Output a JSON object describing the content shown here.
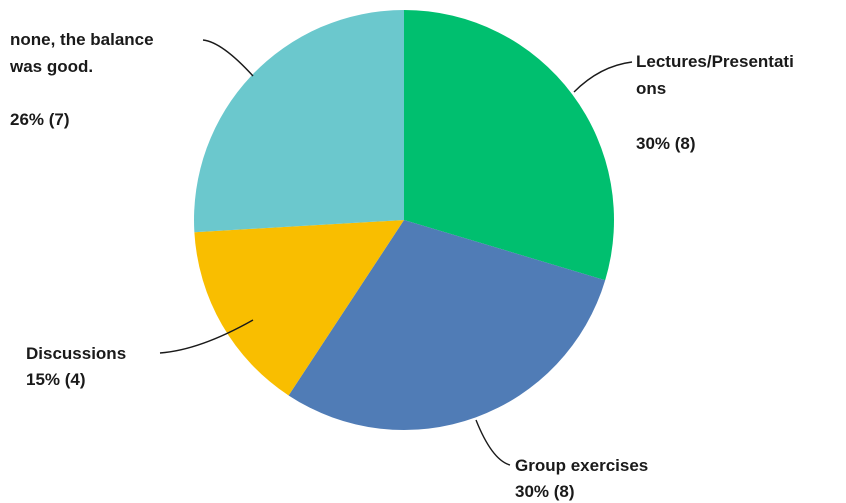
{
  "chart_data": {
    "type": "pie",
    "title": "",
    "start_angle_deg": 0,
    "direction": "clockwise",
    "slices": [
      {
        "label_lines": [
          "Lectures/Presentati",
          "ons"
        ],
        "value_label": "30% (8)",
        "percent": 30,
        "count": 8,
        "color": "#00BF6F"
      },
      {
        "label_lines": [
          "Group exercises"
        ],
        "value_label": "30% (8)",
        "percent": 30,
        "count": 8,
        "color": "#507CB6"
      },
      {
        "label_lines": [
          "Discussions"
        ],
        "value_label": "15% (4)",
        "percent": 15,
        "count": 4,
        "color": "#F9BE00"
      },
      {
        "label_lines": [
          "none, the balance",
          "was good."
        ],
        "value_label": "26% (7)",
        "percent": 26,
        "count": 7,
        "color": "#6BC8CD"
      }
    ]
  }
}
